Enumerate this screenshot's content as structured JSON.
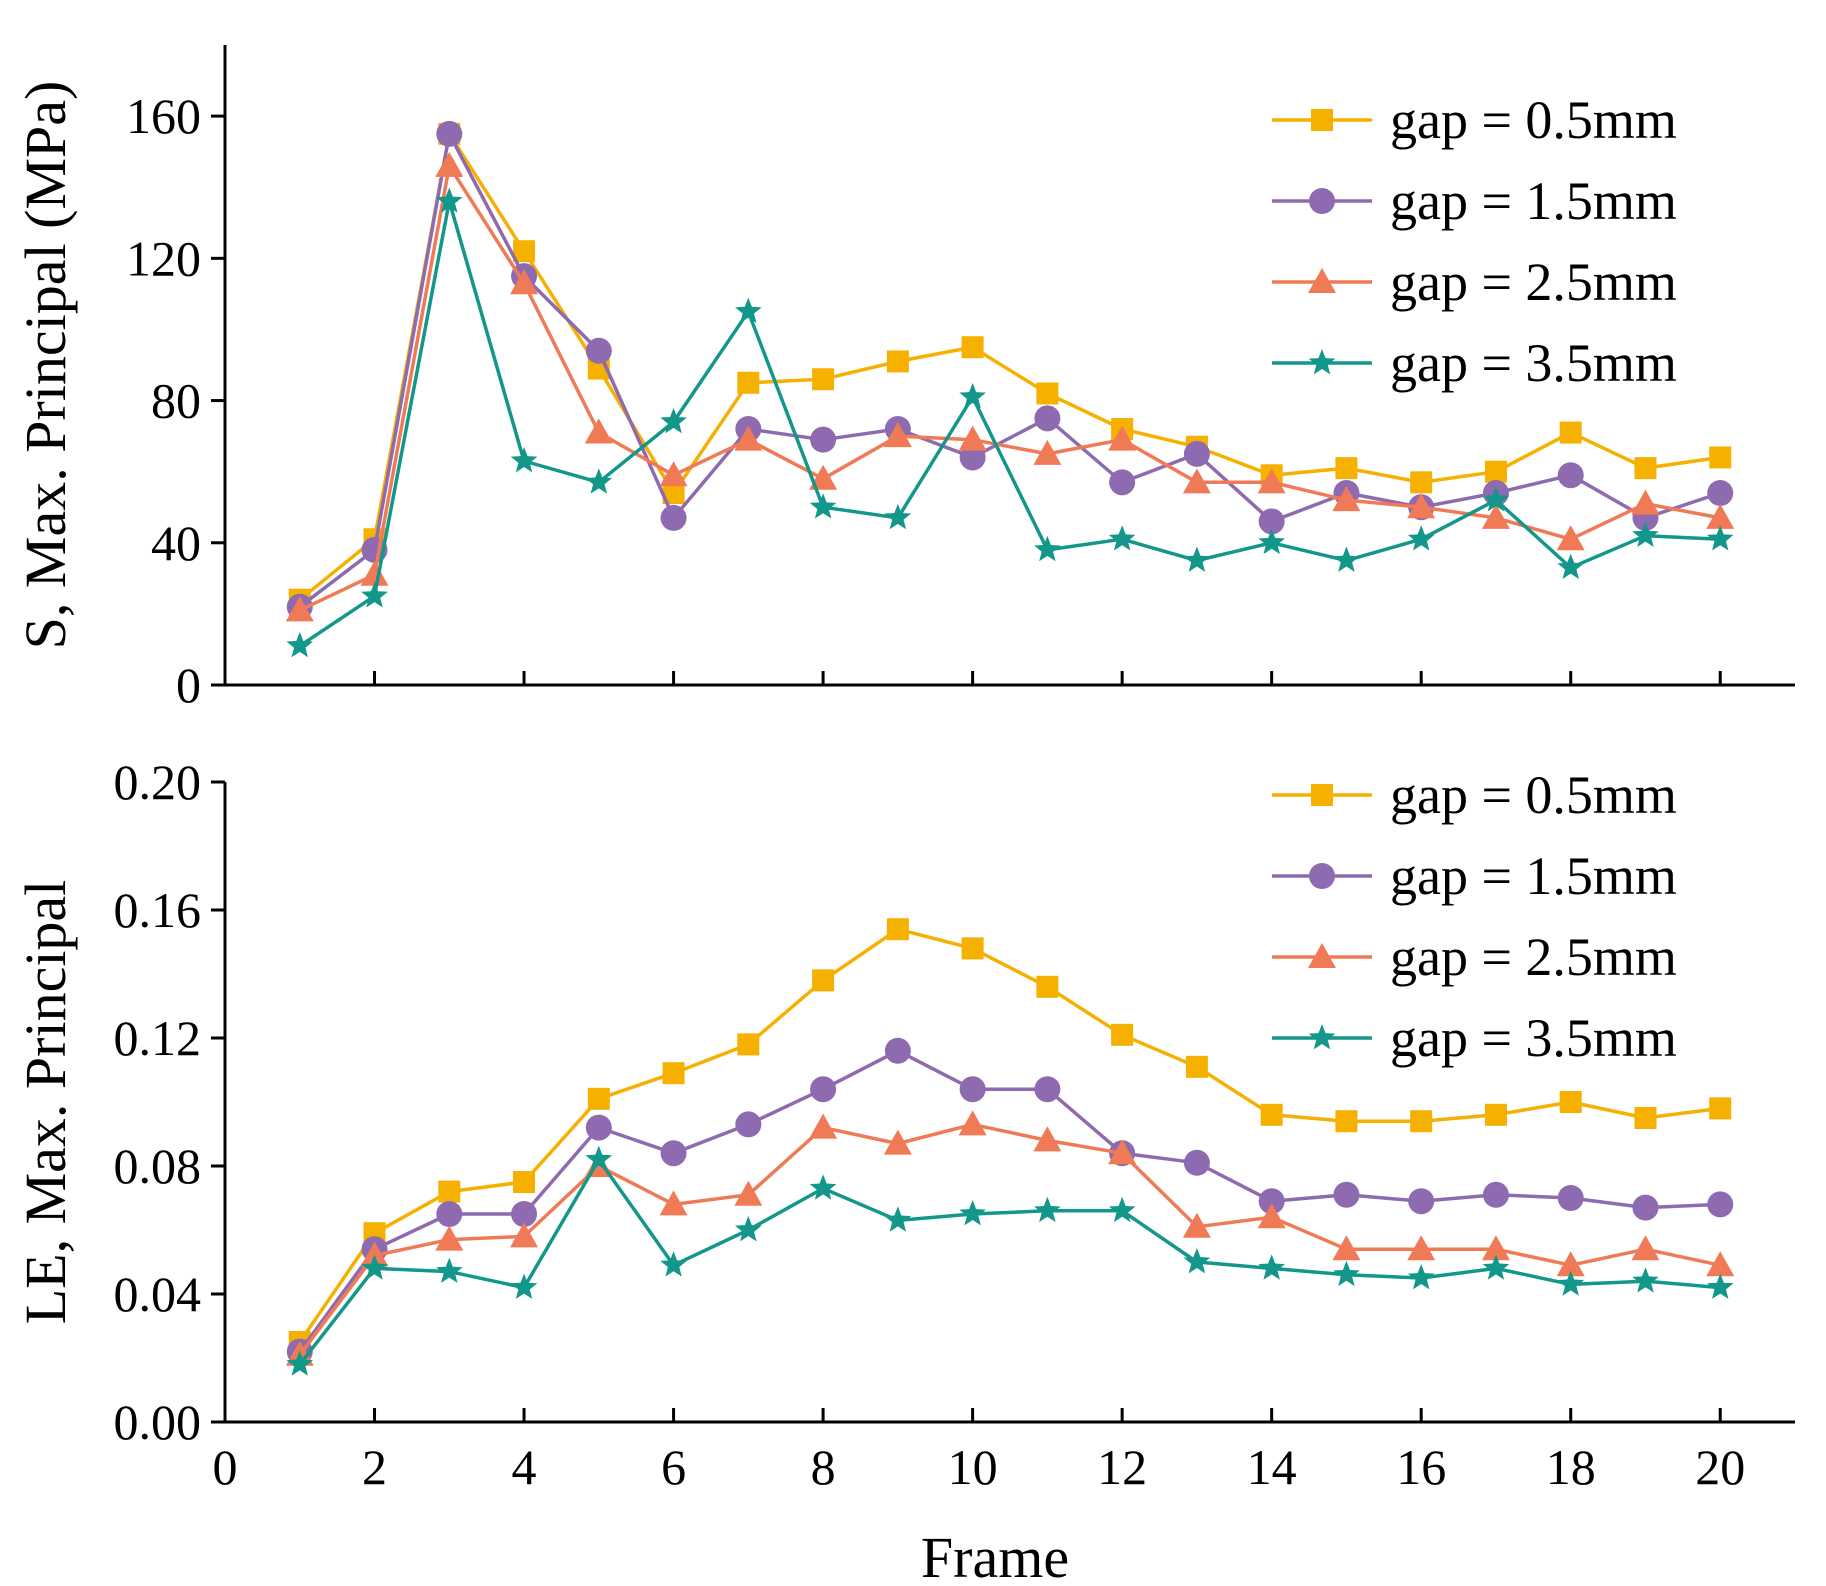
{
  "chart_data": [
    {
      "type": "line",
      "title": "",
      "xlabel": "",
      "ylabel": "S, Max. Principal (MPa)",
      "xlim": [
        0,
        21
      ],
      "ylim": [
        0,
        180
      ],
      "xticks": [
        0,
        2,
        4,
        6,
        8,
        10,
        12,
        14,
        16,
        18,
        20
      ],
      "xtick_labels_visible": false,
      "yticks": [
        0,
        40,
        80,
        120,
        160
      ],
      "ytick_labels": [
        "0",
        "40",
        "80",
        "120",
        "160"
      ],
      "legend_position": "top-right",
      "x": [
        1,
        2,
        3,
        4,
        5,
        6,
        7,
        8,
        9,
        10,
        11,
        12,
        13,
        14,
        15,
        16,
        17,
        18,
        19,
        20
      ],
      "series": [
        {
          "name": "gap = 0.5mm",
          "color": "#F5B000",
          "marker": "square",
          "values": [
            24,
            41,
            155,
            122,
            89,
            54,
            85,
            86,
            91,
            95,
            82,
            72,
            67,
            59,
            61,
            57,
            60,
            71,
            61,
            64
          ]
        },
        {
          "name": "gap = 1.5mm",
          "color": "#8E6BB0",
          "marker": "circle",
          "values": [
            22,
            38,
            155,
            115,
            94,
            47,
            72,
            69,
            72,
            64,
            75,
            57,
            65,
            46,
            54,
            50,
            54,
            59,
            47,
            54
          ]
        },
        {
          "name": "gap = 2.5mm",
          "color": "#F07A56",
          "marker": "triangle",
          "values": [
            21,
            31,
            146,
            113,
            71,
            59,
            69,
            58,
            70,
            69,
            65,
            69,
            57,
            57,
            52,
            50,
            47,
            41,
            51,
            47
          ]
        },
        {
          "name": "gap = 3.5mm",
          "color": "#13978A",
          "marker": "star",
          "values": [
            11,
            25,
            136,
            63,
            57,
            74,
            105,
            50,
            47,
            81,
            38,
            41,
            35,
            40,
            35,
            41,
            52,
            33,
            42,
            41
          ]
        }
      ]
    },
    {
      "type": "line",
      "title": "",
      "xlabel": "Frame",
      "ylabel": "LE, Max. Principal",
      "xlim": [
        0,
        21
      ],
      "ylim": [
        0,
        0.2
      ],
      "xticks": [
        0,
        2,
        4,
        6,
        8,
        10,
        12,
        14,
        16,
        18,
        20
      ],
      "xtick_labels": [
        "0",
        "2",
        "4",
        "6",
        "8",
        "10",
        "12",
        "14",
        "16",
        "18",
        "20"
      ],
      "yticks": [
        0,
        0.04,
        0.08,
        0.12,
        0.16,
        0.2
      ],
      "ytick_labels": [
        "0.00",
        "0.04",
        "0.08",
        "0.12",
        "0.16",
        "0.20"
      ],
      "legend_position": "top-right",
      "x": [
        1,
        2,
        3,
        4,
        5,
        6,
        7,
        8,
        9,
        10,
        11,
        12,
        13,
        14,
        15,
        16,
        17,
        18,
        19,
        20
      ],
      "series": [
        {
          "name": "gap = 0.5mm",
          "color": "#F5B000",
          "marker": "square",
          "values": [
            0.025,
            0.059,
            0.072,
            0.075,
            0.101,
            0.109,
            0.118,
            0.138,
            0.154,
            0.148,
            0.136,
            0.121,
            0.111,
            0.096,
            0.094,
            0.094,
            0.096,
            0.1,
            0.095,
            0.098
          ]
        },
        {
          "name": "gap = 1.5mm",
          "color": "#8E6BB0",
          "marker": "circle",
          "values": [
            0.022,
            0.054,
            0.065,
            0.065,
            0.092,
            0.084,
            0.093,
            0.104,
            0.116,
            0.104,
            0.104,
            0.084,
            0.081,
            0.069,
            0.071,
            0.069,
            0.071,
            0.07,
            0.067,
            0.068
          ]
        },
        {
          "name": "gap = 2.5mm",
          "color": "#F07A56",
          "marker": "triangle",
          "values": [
            0.021,
            0.052,
            0.057,
            0.058,
            0.08,
            0.068,
            0.071,
            0.092,
            0.087,
            0.093,
            0.088,
            0.084,
            0.061,
            0.064,
            0.054,
            0.054,
            0.054,
            0.049,
            0.054,
            0.049
          ]
        },
        {
          "name": "gap = 3.5mm",
          "color": "#13978A",
          "marker": "star",
          "values": [
            0.018,
            0.048,
            0.047,
            0.042,
            0.082,
            0.049,
            0.06,
            0.073,
            0.063,
            0.065,
            0.066,
            0.066,
            0.05,
            0.048,
            0.046,
            0.045,
            0.048,
            0.043,
            0.044,
            0.042
          ]
        }
      ]
    }
  ]
}
